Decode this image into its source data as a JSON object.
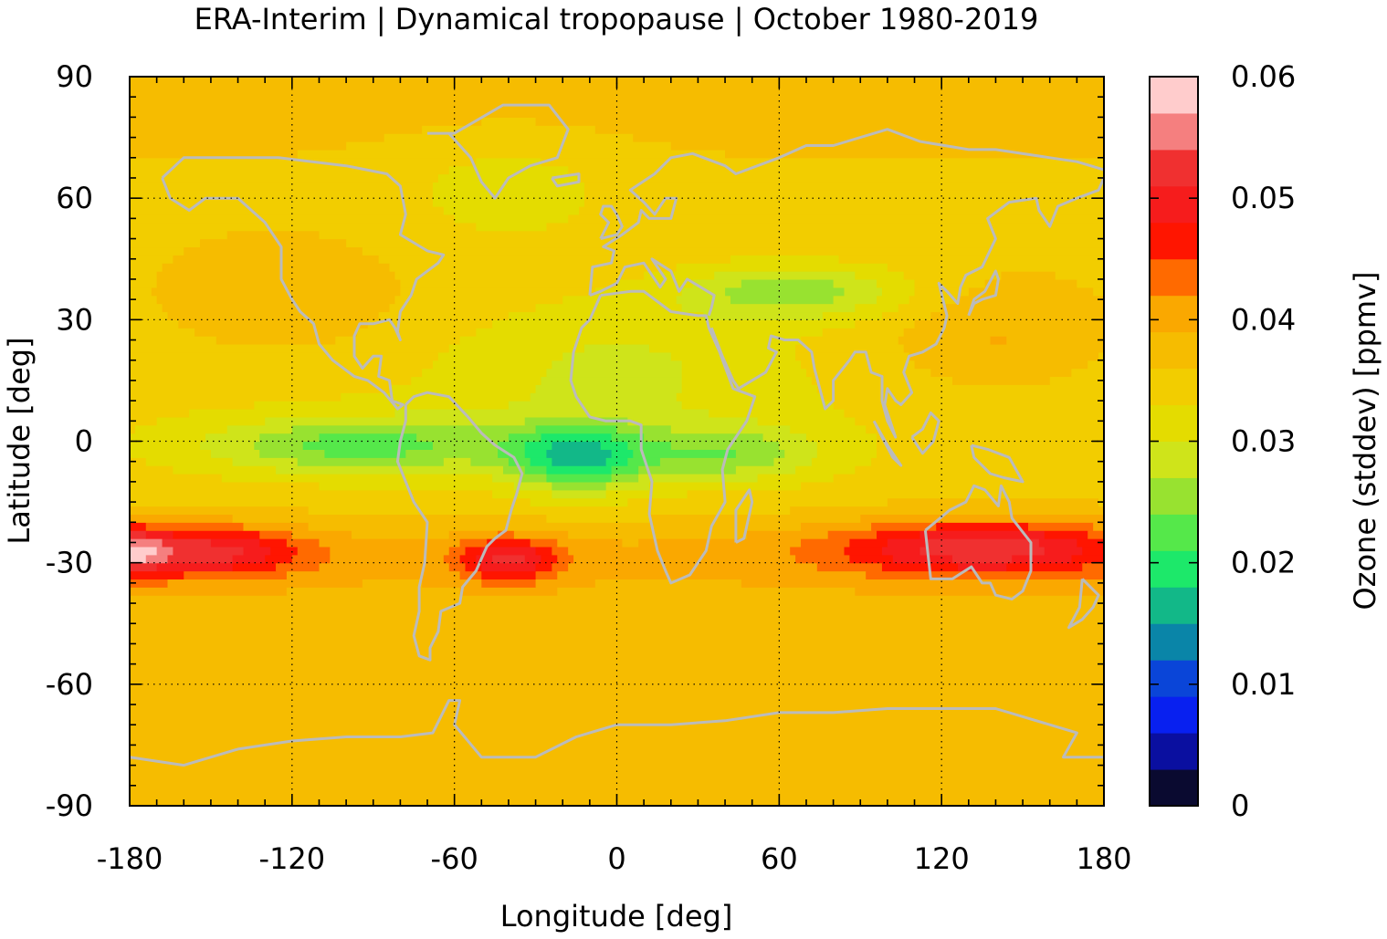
{
  "chart_data": {
    "type": "heatmap",
    "title": "ERA-Interim | Dynamical tropopause | October 1980-2019",
    "xlabel": "Longitude [deg]",
    "ylabel": "Latitude [deg]",
    "xlim": [
      -180,
      180
    ],
    "ylim": [
      -90,
      90
    ],
    "x_ticks": [
      -180,
      -120,
      -60,
      0,
      60,
      120,
      180
    ],
    "y_ticks": [
      90,
      60,
      30,
      0,
      -30,
      -60,
      -90
    ],
    "x_tick_labels": [
      "-180",
      "-120",
      "-60",
      "0",
      "60",
      "120",
      "180"
    ],
    "y_tick_labels": [
      "90",
      "60",
      "30",
      "0",
      "-30",
      "-60",
      "-90"
    ],
    "grid": true,
    "overlay": "coastlines",
    "colorbar": {
      "label": "Ozone (stddev) [ppmv]",
      "range": [
        0,
        0.06
      ],
      "ticks": [
        0.06,
        0.05,
        0.04,
        0.03,
        0.02,
        0.01,
        0
      ],
      "tick_labels": [
        "0.06",
        "0.05",
        "0.04",
        "0.03",
        "0.02",
        "0.01",
        "0"
      ],
      "colors_low_to_high": [
        "#0a0a30",
        "#0a0fa0",
        "#0820f0",
        "#0a45d8",
        "#0a85a8",
        "#12b888",
        "#1de86a",
        "#55e84a",
        "#98e230",
        "#cfe41a",
        "#e4dc00",
        "#f2cd00",
        "#f6bc00",
        "#faa800",
        "#ff6a00",
        "#ff1500",
        "#f61c1c",
        "#f03030",
        "#f57f7f",
        "#ffcccc"
      ]
    },
    "field_description": "October stddev of ozone at dynamical tropopause; background ~0.035-0.038 ppmv",
    "features": [
      {
        "region": "South Pacific subtropics",
        "lon": [
          -180,
          -120
        ],
        "lat": [
          -33,
          -22
        ],
        "value": 0.048
      },
      {
        "region": "South Atlantic / South America",
        "lon": [
          -55,
          -25
        ],
        "lat": [
          -33,
          -24
        ],
        "value": 0.048
      },
      {
        "region": "Indian Ocean / Australia",
        "lon": [
          85,
          180
        ],
        "lat": [
          -33,
          -18
        ],
        "value": 0.049
      },
      {
        "region": "Equatorial Atlantic",
        "lon": [
          -35,
          5
        ],
        "lat": [
          -10,
          4
        ],
        "value": 0.021
      },
      {
        "region": "Equatorial East Pacific",
        "lon": [
          -150,
          -60
        ],
        "lat": [
          -7,
          6
        ],
        "value": 0.024
      },
      {
        "region": "Central Asia",
        "lon": [
          30,
          100
        ],
        "lat": [
          30,
          45
        ],
        "value": 0.026
      },
      {
        "region": "Western North Pacific",
        "lon": [
          100,
          160
        ],
        "lat": [
          15,
          35
        ],
        "value": 0.04
      }
    ]
  }
}
